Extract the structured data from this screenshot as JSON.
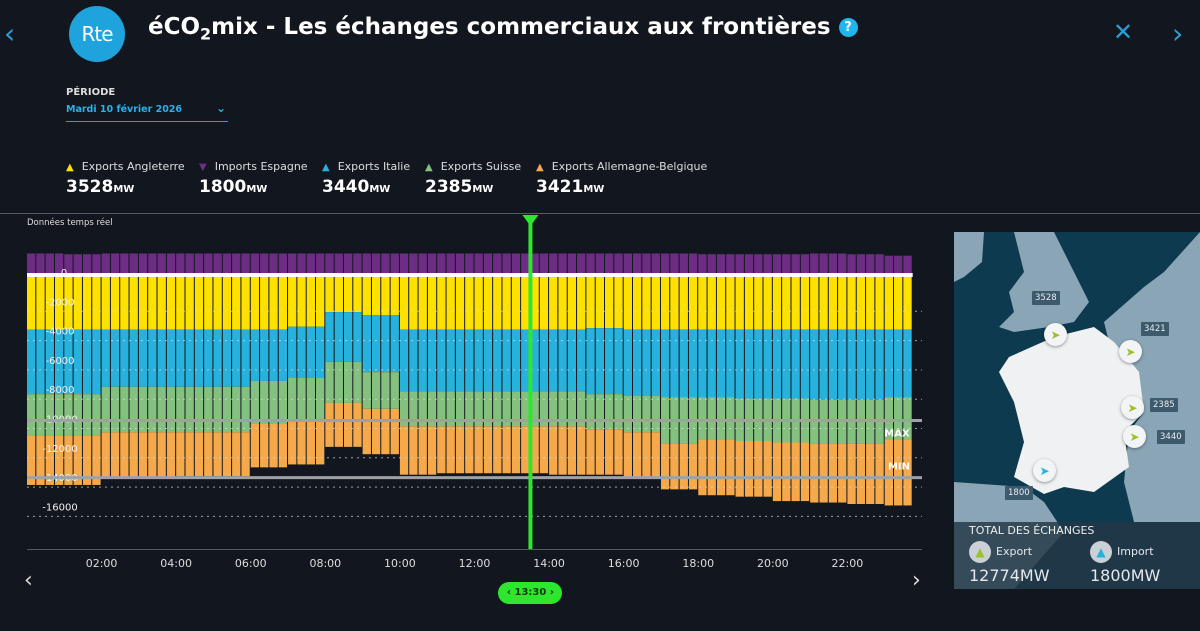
{
  "header": {
    "logo_text": "Rte",
    "title_prefix": "éCO",
    "title_sub": "2",
    "title_suffix": "mix - Les échanges commerciaux aux frontières",
    "help_icon": "?",
    "prev_icon": "‹",
    "next_icon": "›",
    "close_icon": "✕"
  },
  "periode": {
    "label": "PÉRIODE",
    "value": "Mardi 10 février 2026",
    "chevron": "⌄"
  },
  "legend": [
    {
      "label": "Exports Angleterre",
      "value": "3528",
      "unit": "MW",
      "color": "#ffe100",
      "dir": "up"
    },
    {
      "label": "Imports Espagne",
      "value": "1800",
      "unit": "MW",
      "color": "#6e2d84",
      "dir": "down"
    },
    {
      "label": "Exports Italie",
      "value": "3440",
      "unit": "MW",
      "color": "#27b1dd",
      "dir": "up"
    },
    {
      "label": "Exports Suisse",
      "value": "2385",
      "unit": "MW",
      "color": "#85c17e",
      "dir": "up"
    },
    {
      "label": "Exports Allemagne-Belgique",
      "value": "3421",
      "unit": "MW",
      "color": "#f5a94a",
      "dir": "up"
    }
  ],
  "chart_caption": "Données temps réel",
  "cursor_time": "13:30",
  "cursor_prev": "‹",
  "cursor_next": "›",
  "chart_prev": "‹",
  "chart_next": "›",
  "chart_data": {
    "type": "bar",
    "stacked": true,
    "interval_minutes": 15,
    "ylim": [
      -16000,
      1500
    ],
    "yticks": [
      0,
      -2000,
      -4000,
      -6000,
      -8000,
      -10000,
      -12000,
      -14000,
      -16000
    ],
    "xticks": [
      "02:00",
      "04:00",
      "06:00",
      "08:00",
      "10:00",
      "12:00",
      "14:00",
      "16:00",
      "18:00",
      "20:00",
      "22:00"
    ],
    "max_line": -10000,
    "min_line": -13900,
    "max_label": "MAX",
    "min_label": "MIN",
    "hourly": {
      "hours": [
        "00",
        "01",
        "02",
        "03",
        "04",
        "05",
        "06",
        "07",
        "08",
        "09",
        "10",
        "11",
        "12",
        "13",
        "14",
        "15",
        "16",
        "17",
        "18",
        "19",
        "20",
        "21",
        "22",
        "23"
      ],
      "import_espagne": [
        1400,
        1350,
        1400,
        1400,
        1400,
        1400,
        1400,
        1400,
        1400,
        1400,
        1400,
        1400,
        1400,
        1400,
        1400,
        1400,
        1400,
        1400,
        1350,
        1350,
        1350,
        1400,
        1350,
        1250
      ],
      "export_angleterre": [
        3800,
        3800,
        3800,
        3800,
        3800,
        3800,
        3800,
        3600,
        2600,
        2800,
        3800,
        3800,
        3800,
        3800,
        3800,
        3700,
        3800,
        3800,
        3800,
        3800,
        3800,
        3800,
        3800,
        3800
      ],
      "export_italie": [
        4400,
        4400,
        3900,
        3900,
        3900,
        3900,
        3500,
        3500,
        3400,
        3900,
        4200,
        4200,
        4200,
        4200,
        4200,
        4500,
        4500,
        4600,
        4600,
        4700,
        4700,
        4800,
        4800,
        4600
      ],
      "export_suisse": [
        2800,
        2800,
        3100,
        3100,
        3100,
        3100,
        2900,
        2800,
        2800,
        2500,
        2400,
        2400,
        2400,
        2400,
        2400,
        2400,
        2500,
        3200,
        2900,
        2900,
        3000,
        3000,
        3000,
        2900
      ],
      "export_allemagne_belgique": [
        3400,
        3400,
        3100,
        3100,
        3000,
        3000,
        3000,
        3100,
        3000,
        3100,
        3300,
        3200,
        3200,
        3200,
        3300,
        3100,
        3100,
        3100,
        3800,
        3800,
        4000,
        4000,
        4100,
        4500
      ]
    }
  },
  "map": {
    "labels": {
      "angleterre": "3528",
      "allemagne_belgique": "3421",
      "suisse": "2385",
      "italie": "3440",
      "espagne": "1800"
    },
    "total_title": "TOTAL DES ÉCHANGES",
    "export_label": "Export",
    "export_value": "12774MW",
    "import_label": "Import",
    "import_value": "1800MW"
  }
}
